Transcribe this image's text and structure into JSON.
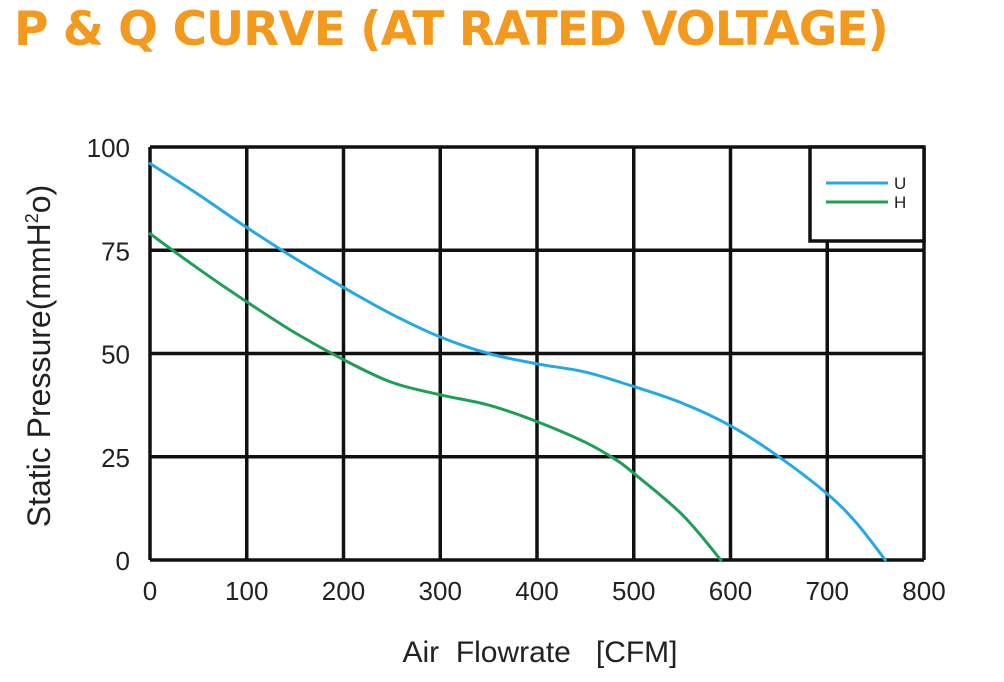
{
  "chart_data": {
    "type": "line",
    "title": "P & Q CURVE (AT RATED VOLTAGE)",
    "xlabel": "Air  Flowrate   [CFM]",
    "ylabel_main": "Static Pressure(mmH",
    "ylabel_sup": "2",
    "ylabel_end": "o)",
    "xlim": [
      0,
      800
    ],
    "ylim": [
      0,
      100
    ],
    "xticks": [
      "0",
      "100",
      "200",
      "300",
      "400",
      "500",
      "600",
      "700",
      "800"
    ],
    "yticks": [
      "0",
      "25",
      "50",
      "75",
      "100"
    ],
    "grid": true,
    "legend_position": "top-right",
    "colors": {
      "title": "#f39a1e",
      "grid": "#111111",
      "series_U": "#27a8e6",
      "series_H": "#1f9e55"
    },
    "series": [
      {
        "name": "U",
        "color": "#27a8e6",
        "x": [
          0,
          50,
          100,
          150,
          200,
          250,
          300,
          350,
          400,
          450,
          500,
          550,
          600,
          650,
          700,
          730,
          760
        ],
        "y": [
          96,
          88.5,
          80.5,
          73,
          66,
          59.5,
          54,
          50,
          47.5,
          45.5,
          42,
          38,
          32.5,
          25,
          16,
          9,
          0
        ]
      },
      {
        "name": "H",
        "color": "#1f9e55",
        "x": [
          0,
          50,
          100,
          150,
          200,
          250,
          300,
          350,
          400,
          450,
          480,
          500,
          550,
          590
        ],
        "y": [
          79,
          70.5,
          62.5,
          55,
          48.5,
          43,
          40,
          37.5,
          33.5,
          28.5,
          24.5,
          21,
          11,
          0
        ]
      }
    ]
  }
}
